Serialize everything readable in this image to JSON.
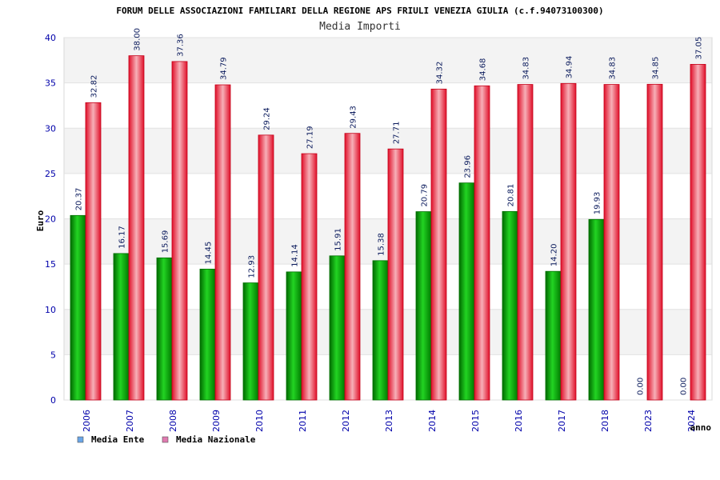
{
  "chart_data": {
    "type": "bar",
    "title": "FORUM DELLE ASSOCIAZIONI FAMILIARI DELLA REGIONE APS FRIULI VENEZIA GIULIA (c.f.94073100300)",
    "subtitle": "Media Importi",
    "xlabel": "anno",
    "ylabel": "Euro",
    "ylim": [
      0,
      40
    ],
    "yticks": [
      "0",
      "5",
      "10",
      "15",
      "20",
      "25",
      "30",
      "35",
      "40"
    ],
    "categories": [
      "2006",
      "2007",
      "2008",
      "2009",
      "2010",
      "2011",
      "2012",
      "2013",
      "2014",
      "2015",
      "2016",
      "2017",
      "2018",
      "2023",
      "2024"
    ],
    "series": [
      {
        "name": "Media Ente",
        "color": "#00b000",
        "legend_color": "#6aa6e8",
        "values": [
          20.37,
          16.17,
          15.69,
          14.45,
          12.93,
          14.14,
          15.91,
          15.38,
          20.79,
          23.96,
          20.81,
          14.2,
          19.93,
          0.0,
          0.0
        ],
        "labels": [
          "20.37",
          "16.17",
          "15.69",
          "14.45",
          "12.93",
          "14.14",
          "15.91",
          "15.38",
          "20.79",
          "23.96",
          "20.81",
          "14.20",
          "19.93",
          "0.00",
          "0.00"
        ]
      },
      {
        "name": "Media Nazionale",
        "color": "#e8182e",
        "legend_color": "#e07ab0",
        "values": [
          32.82,
          38.0,
          37.36,
          34.79,
          29.24,
          27.19,
          29.43,
          27.71,
          34.32,
          34.68,
          34.83,
          34.94,
          34.83,
          34.85,
          37.05
        ],
        "labels": [
          "32.82",
          "38.00",
          "37.36",
          "34.79",
          "29.24",
          "27.19",
          "29.43",
          "27.71",
          "34.32",
          "34.68",
          "34.83",
          "34.94",
          "34.83",
          "34.85",
          "37.05"
        ]
      }
    ],
    "grid": true,
    "legend_position": "bottom-left"
  }
}
